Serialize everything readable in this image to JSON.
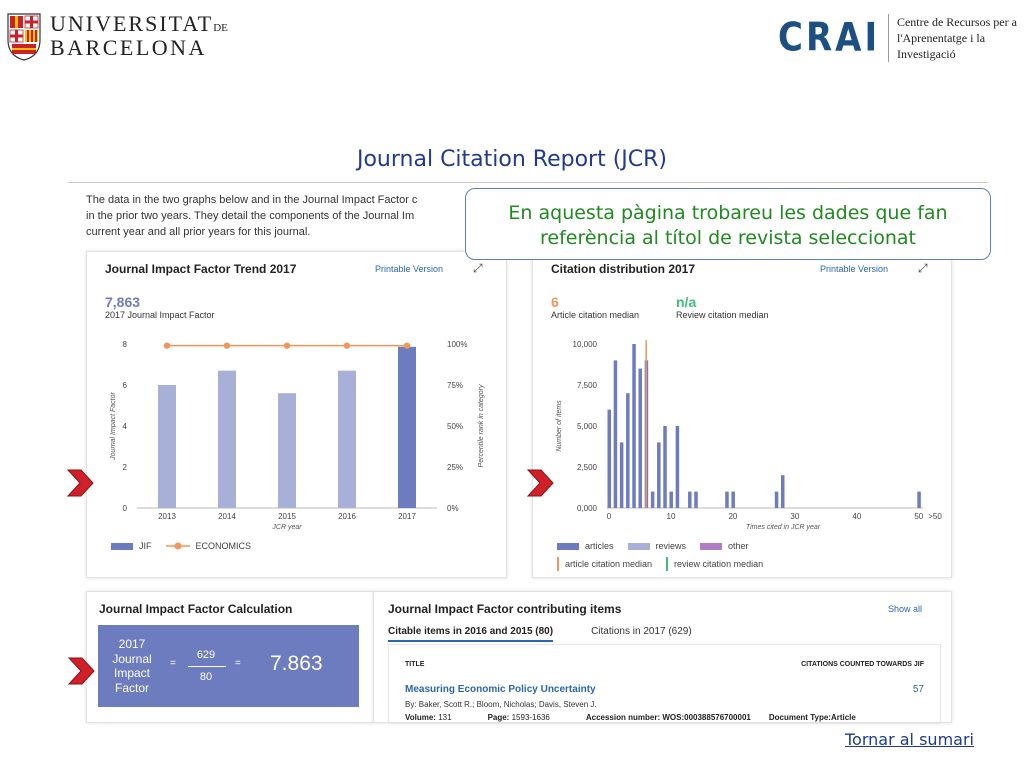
{
  "header": {
    "ub": {
      "line1": "UNIVERSITAT",
      "line1_suffix": "DE",
      "line2": "BARCELONA"
    },
    "crai": {
      "mark": "CRAI",
      "line1": "Centre de Recursos per a",
      "line2": "l'Aprenentatge i la Investigació"
    }
  },
  "page_title": "Journal Citation Report (JCR)",
  "intro": {
    "line1": "The data in the two graphs below and in the Journal Impact Factor c",
    "line2": "in the prior two years. They detail the components of the Journal Im",
    "line3": "current year and all prior years for this journal."
  },
  "callout": {
    "line1": "En aquesta pàgina trobareu les dades que fan",
    "line2": "referència al títol de revista seleccionat"
  },
  "trend_panel": {
    "title": "Journal Impact Factor Trend 2017",
    "link": "Printable Version",
    "value": "7,863",
    "value_label": "2017 Journal Impact Factor",
    "left_axis_label": "Journal Impact Factor",
    "right_axis_label": "Percentile rank in category",
    "x_axis_label": "JCR year",
    "legend": {
      "jif": "JIF",
      "economics": "ECONOMICS"
    }
  },
  "dist_panel": {
    "title": "Citation distribution 2017",
    "link": "Printable Version",
    "article_median": "6",
    "article_median_label": "Article citation median",
    "review_median": "n/a",
    "review_median_label": "Review citation median",
    "y_axis_label": "Number of items",
    "x_axis_label": "Times cited in JCR year",
    "legend": {
      "articles": "articles",
      "reviews": "reviews",
      "other": "other",
      "article_median": "article citation median",
      "review_median": "review citation median"
    }
  },
  "calc_panel": {
    "title": "Journal Impact Factor Calculation",
    "label_lines": [
      "2017",
      "Journal",
      "Impact",
      "Factor"
    ],
    "eq": "=",
    "numerator": "629",
    "denominator": "80",
    "result": "7.863"
  },
  "items_panel": {
    "title": "Journal Impact Factor contributing items",
    "show_all": "Show all",
    "tabs": [
      "Citable items in 2016 and 2015 (80)",
      "Citations in 2017 (629)"
    ],
    "col_title": "TITLE",
    "col_count": "CITATIONS COUNTED TOWARDS JIF",
    "item": {
      "title": "Measuring Economic Policy Uncertainty",
      "count": "57",
      "authors": "By: Baker, Scott R.; Bloom, Nicholas; Davis, Steven J.",
      "volume_label": "Volume:",
      "volume": "131",
      "page_label": "Page:",
      "page": "1593-1636",
      "accession_label": "Accession number:",
      "accession": "WOS:000388576700001",
      "doctype_label": "Document Type:",
      "doctype": "Article"
    }
  },
  "footer_link": "Tornar al sumari",
  "colors": {
    "title_blue": "#1f3a8f",
    "bar_light": "#a9b0d8",
    "bar_dark": "#6d7bbf",
    "economics_line": "#f0965a",
    "article_median_line": "#f0965a",
    "review_median_line": "#3bbf7c",
    "callout_text": "#1f8a1f",
    "arrow_red": "#d0202a"
  },
  "chart_data": [
    {
      "type": "bar",
      "title": "Journal Impact Factor Trend 2017",
      "categories": [
        "2013",
        "2014",
        "2015",
        "2016",
        "2017"
      ],
      "series": [
        {
          "name": "JIF",
          "values": [
            6.0,
            6.7,
            5.6,
            6.7,
            7.863
          ]
        },
        {
          "name": "ECONOMICS",
          "values": [
            99,
            99,
            99,
            99,
            99
          ],
          "axis": "right",
          "unit": "%"
        }
      ],
      "ylim": [
        0,
        8
      ],
      "y_ticks": [
        "0",
        "2",
        "4",
        "6",
        "8"
      ],
      "y2lim": [
        0,
        100
      ],
      "y2_ticks": [
        "0%",
        "25%",
        "50%",
        "75%",
        "100%"
      ],
      "xlabel": "JCR year",
      "ylabel": "Journal Impact Factor",
      "y2label": "Percentile rank in category"
    },
    {
      "type": "bar",
      "title": "Citation distribution 2017",
      "series": [
        {
          "name": "articles",
          "x": [
            0,
            1,
            2,
            3,
            4,
            5,
            6,
            7,
            8,
            9,
            10,
            11,
            13,
            14,
            19,
            20,
            27,
            28,
            50
          ],
          "values": [
            6000,
            9000,
            4000,
            7000,
            10000,
            8500,
            9000,
            1000,
            4000,
            5000,
            1000,
            5000,
            1000,
            1000,
            1000,
            1000,
            1000,
            2000,
            1000
          ]
        }
      ],
      "article_median": 6,
      "xlim": [
        0,
        51
      ],
      "x_ticks": [
        "0",
        "10",
        "20",
        "30",
        "40",
        "50",
        ">50"
      ],
      "ylim": [
        0,
        10000
      ],
      "y_ticks": [
        "0,000",
        "2,500",
        "5,000",
        "7,500",
        "10,000"
      ],
      "xlabel": "Times cited in JCR year",
      "ylabel": "Number of items"
    }
  ]
}
